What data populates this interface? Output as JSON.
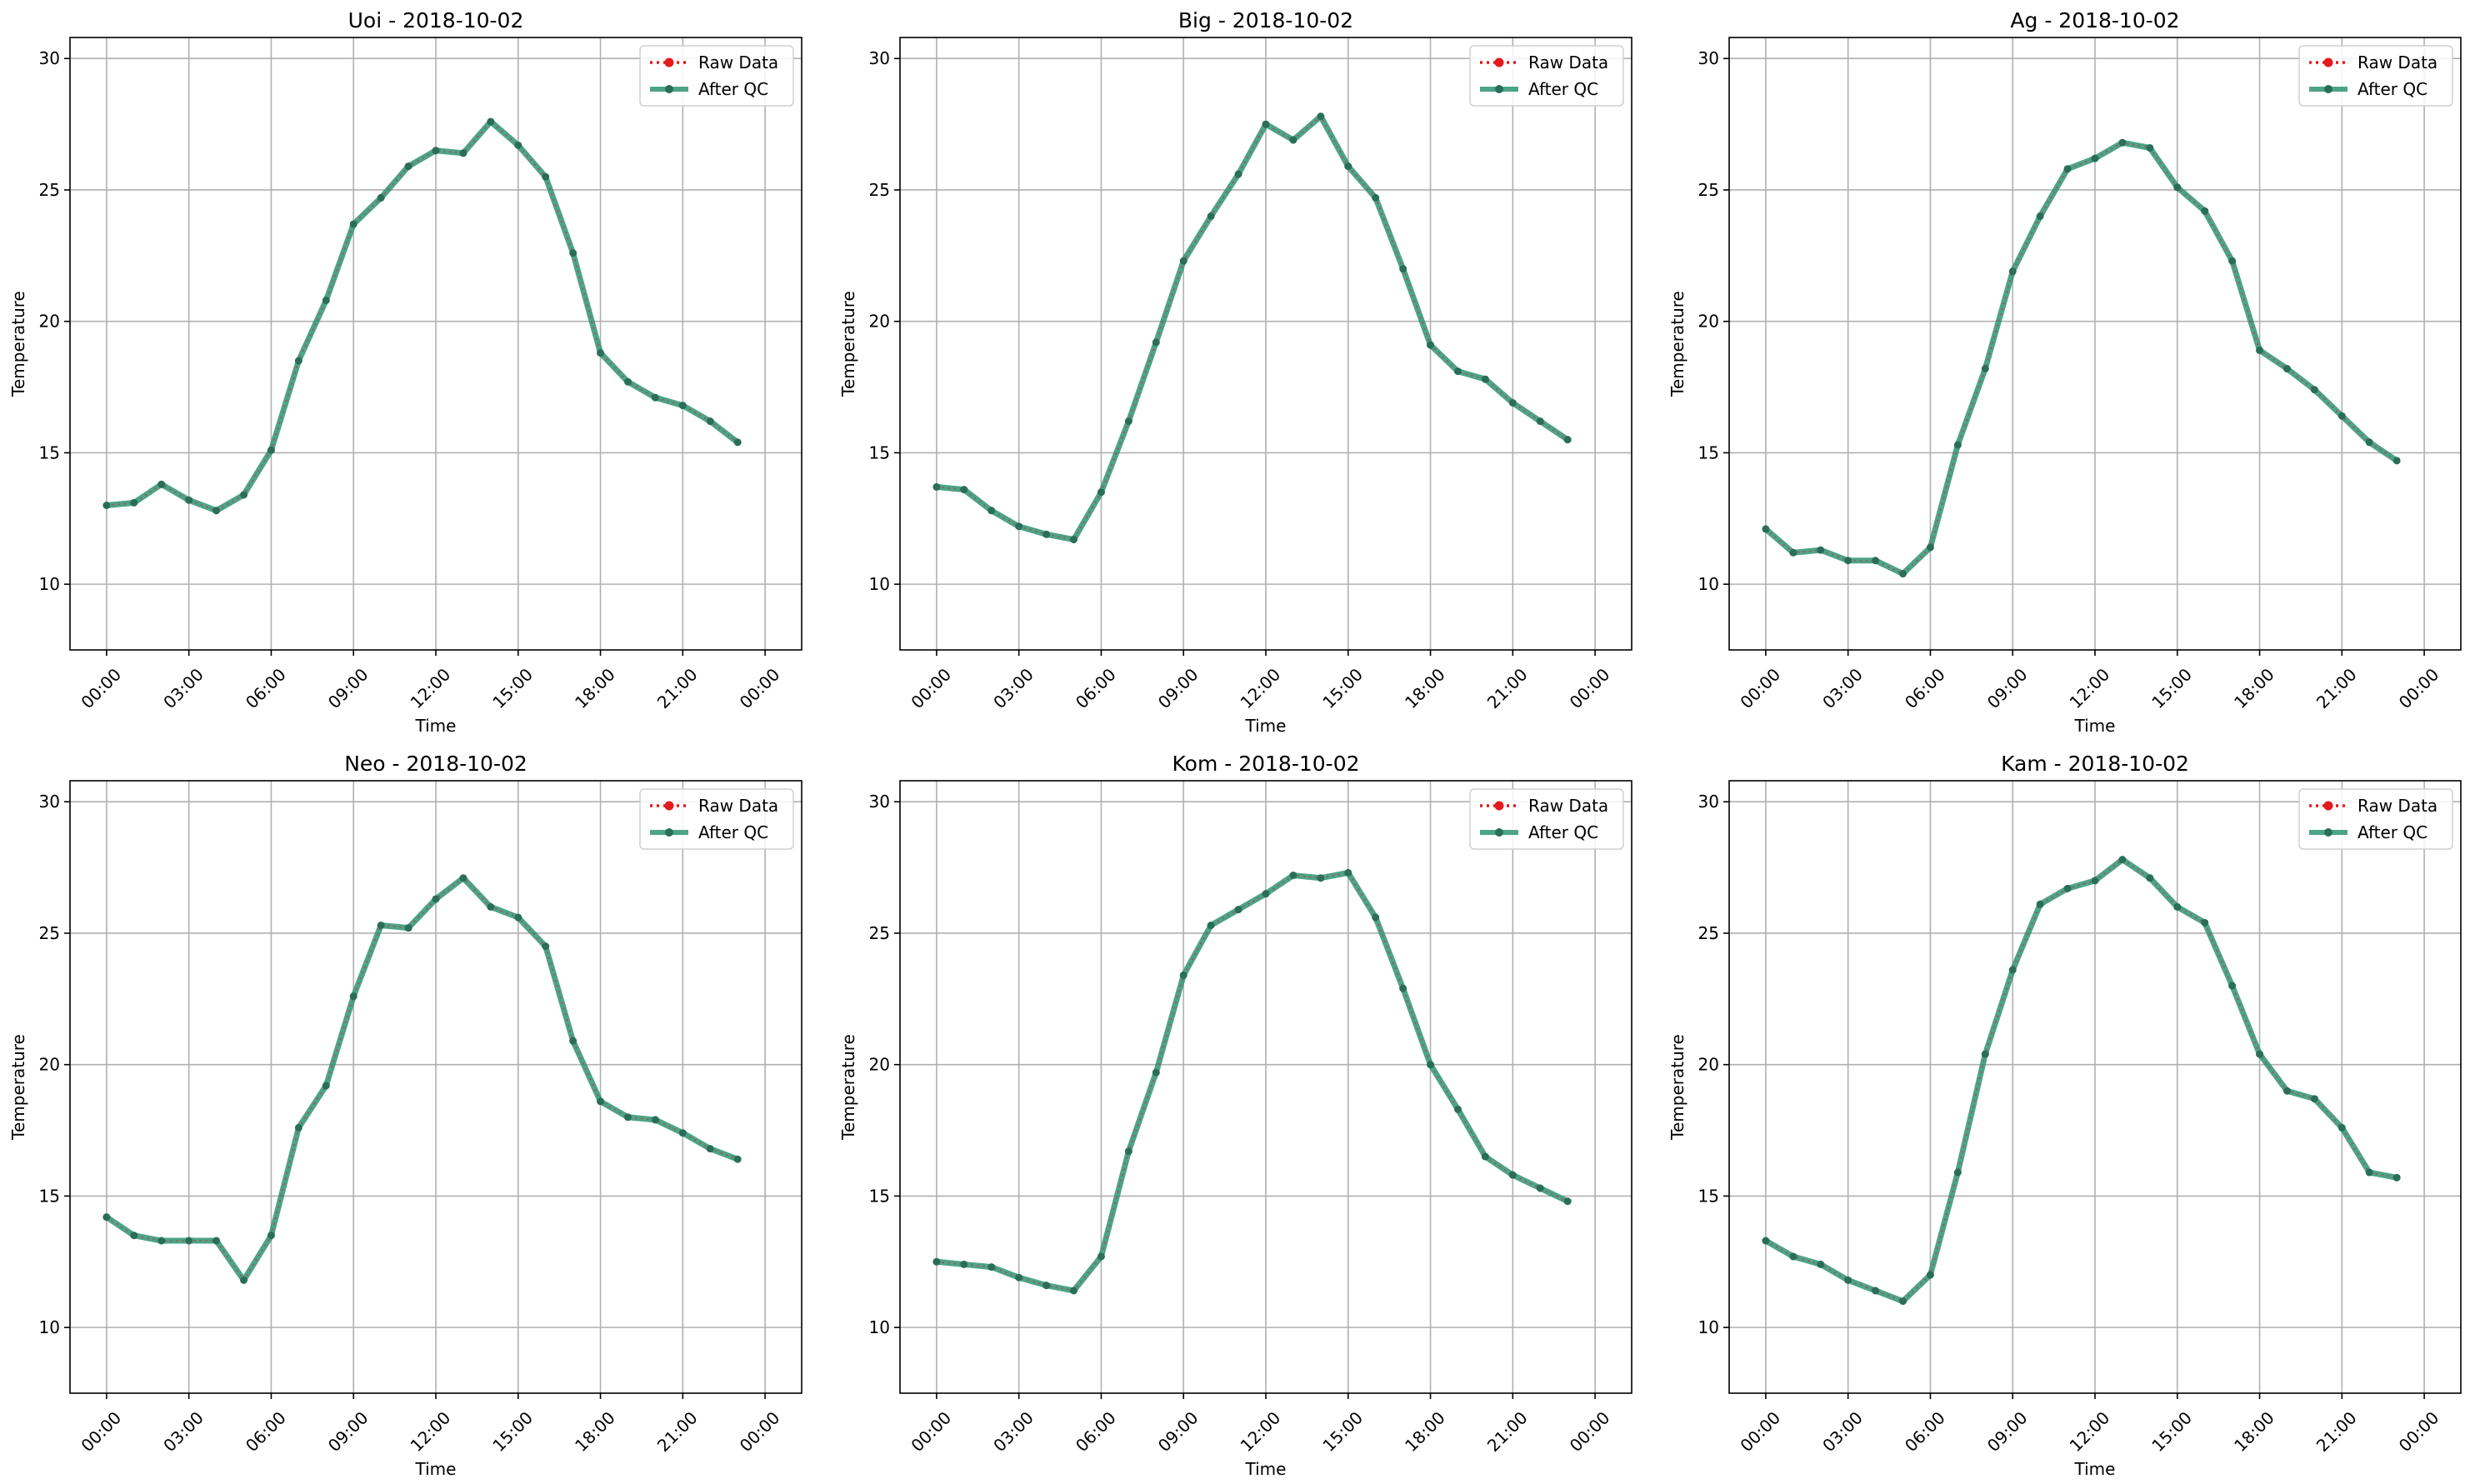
{
  "chart_data": [
    {
      "type": "line",
      "title": "Uoi - 2018-10-02",
      "xlabel": "Time",
      "ylabel": "Temperature",
      "ylim": [
        7.5,
        30.8
      ],
      "yticks": [
        10,
        15,
        20,
        25,
        30
      ],
      "xticks": [
        "00:00",
        "03:00",
        "06:00",
        "09:00",
        "12:00",
        "15:00",
        "18:00",
        "21:00",
        "00:00"
      ],
      "grid": true,
      "legend_position": "top-right",
      "x": [
        "00:00",
        "01:00",
        "02:00",
        "03:00",
        "04:00",
        "05:00",
        "06:00",
        "07:00",
        "08:00",
        "09:00",
        "10:00",
        "11:00",
        "12:00",
        "13:00",
        "14:00",
        "15:00",
        "16:00",
        "17:00",
        "18:00",
        "19:00",
        "20:00",
        "21:00",
        "22:00",
        "23:00"
      ],
      "series": [
        {
          "name": "Raw Data",
          "values": [
            13.0,
            13.1,
            13.8,
            13.2,
            12.8,
            13.4,
            15.1,
            18.5,
            20.8,
            23.7,
            24.7,
            25.9,
            26.5,
            26.4,
            27.6,
            26.7,
            25.5,
            22.6,
            18.8,
            17.7,
            17.1,
            16.8,
            16.2,
            15.4
          ]
        },
        {
          "name": "After QC",
          "values": [
            13.0,
            13.1,
            13.8,
            13.2,
            12.8,
            13.4,
            15.1,
            18.5,
            20.8,
            23.7,
            24.7,
            25.9,
            26.5,
            26.4,
            27.6,
            26.7,
            25.5,
            22.6,
            18.8,
            17.7,
            17.1,
            16.8,
            16.2,
            15.4
          ]
        }
      ]
    },
    {
      "type": "line",
      "title": "Big - 2018-10-02",
      "xlabel": "Time",
      "ylabel": "Temperature",
      "ylim": [
        7.5,
        30.8
      ],
      "yticks": [
        10,
        15,
        20,
        25,
        30
      ],
      "xticks": [
        "00:00",
        "03:00",
        "06:00",
        "09:00",
        "12:00",
        "15:00",
        "18:00",
        "21:00",
        "00:00"
      ],
      "grid": true,
      "legend_position": "top-right",
      "x": [
        "00:00",
        "01:00",
        "02:00",
        "03:00",
        "04:00",
        "05:00",
        "06:00",
        "07:00",
        "08:00",
        "09:00",
        "10:00",
        "11:00",
        "12:00",
        "13:00",
        "14:00",
        "15:00",
        "16:00",
        "17:00",
        "18:00",
        "19:00",
        "20:00",
        "21:00",
        "22:00",
        "23:00"
      ],
      "series": [
        {
          "name": "Raw Data",
          "values": [
            13.7,
            13.6,
            12.8,
            12.2,
            11.9,
            11.7,
            13.5,
            16.2,
            19.2,
            22.3,
            24.0,
            25.6,
            27.5,
            26.9,
            27.8,
            25.9,
            24.7,
            22.0,
            19.1,
            18.1,
            17.8,
            16.9,
            16.2,
            15.5
          ]
        },
        {
          "name": "After QC",
          "values": [
            13.7,
            13.6,
            12.8,
            12.2,
            11.9,
            11.7,
            13.5,
            16.2,
            19.2,
            22.3,
            24.0,
            25.6,
            27.5,
            26.9,
            27.8,
            25.9,
            24.7,
            22.0,
            19.1,
            18.1,
            17.8,
            16.9,
            16.2,
            15.5
          ]
        }
      ]
    },
    {
      "type": "line",
      "title": "Ag - 2018-10-02",
      "xlabel": "Time",
      "ylabel": "Temperature",
      "ylim": [
        7.5,
        30.8
      ],
      "yticks": [
        10,
        15,
        20,
        25,
        30
      ],
      "xticks": [
        "00:00",
        "03:00",
        "06:00",
        "09:00",
        "12:00",
        "15:00",
        "18:00",
        "21:00",
        "00:00"
      ],
      "grid": true,
      "legend_position": "top-right",
      "x": [
        "00:00",
        "01:00",
        "02:00",
        "03:00",
        "04:00",
        "05:00",
        "06:00",
        "07:00",
        "08:00",
        "09:00",
        "10:00",
        "11:00",
        "12:00",
        "13:00",
        "14:00",
        "15:00",
        "16:00",
        "17:00",
        "18:00",
        "19:00",
        "20:00",
        "21:00",
        "22:00",
        "23:00"
      ],
      "series": [
        {
          "name": "Raw Data",
          "values": [
            12.1,
            11.2,
            11.3,
            10.9,
            10.9,
            10.4,
            11.4,
            15.3,
            18.2,
            21.9,
            24.0,
            25.8,
            26.2,
            26.8,
            26.6,
            25.1,
            24.2,
            22.3,
            18.9,
            18.2,
            17.4,
            16.4,
            15.4,
            14.7
          ]
        },
        {
          "name": "After QC",
          "values": [
            12.1,
            11.2,
            11.3,
            10.9,
            10.9,
            10.4,
            11.4,
            15.3,
            18.2,
            21.9,
            24.0,
            25.8,
            26.2,
            26.8,
            26.6,
            25.1,
            24.2,
            22.3,
            18.9,
            18.2,
            17.4,
            16.4,
            15.4,
            14.7
          ]
        }
      ]
    },
    {
      "type": "line",
      "title": "Neo - 2018-10-02",
      "xlabel": "Time",
      "ylabel": "Temperature",
      "ylim": [
        7.5,
        30.8
      ],
      "yticks": [
        10,
        15,
        20,
        25,
        30
      ],
      "xticks": [
        "00:00",
        "03:00",
        "06:00",
        "09:00",
        "12:00",
        "15:00",
        "18:00",
        "21:00",
        "00:00"
      ],
      "grid": true,
      "legend_position": "top-right",
      "x": [
        "00:00",
        "01:00",
        "02:00",
        "03:00",
        "04:00",
        "05:00",
        "06:00",
        "07:00",
        "08:00",
        "09:00",
        "10:00",
        "11:00",
        "12:00",
        "13:00",
        "14:00",
        "15:00",
        "16:00",
        "17:00",
        "18:00",
        "19:00",
        "20:00",
        "21:00",
        "22:00",
        "23:00"
      ],
      "series": [
        {
          "name": "Raw Data",
          "values": [
            14.2,
            13.5,
            13.3,
            13.3,
            13.3,
            11.8,
            13.5,
            17.6,
            19.2,
            22.6,
            25.3,
            25.2,
            26.3,
            27.1,
            26.0,
            25.6,
            24.5,
            20.9,
            18.6,
            18.0,
            17.9,
            17.4,
            16.8,
            16.4
          ]
        },
        {
          "name": "After QC",
          "values": [
            14.2,
            13.5,
            13.3,
            13.3,
            13.3,
            11.8,
            13.5,
            17.6,
            19.2,
            22.6,
            25.3,
            25.2,
            26.3,
            27.1,
            26.0,
            25.6,
            24.5,
            20.9,
            18.6,
            18.0,
            17.9,
            17.4,
            16.8,
            16.4
          ]
        }
      ]
    },
    {
      "type": "line",
      "title": "Kom - 2018-10-02",
      "xlabel": "Time",
      "ylabel": "Temperature",
      "ylim": [
        7.5,
        30.8
      ],
      "yticks": [
        10,
        15,
        20,
        25,
        30
      ],
      "xticks": [
        "00:00",
        "03:00",
        "06:00",
        "09:00",
        "12:00",
        "15:00",
        "18:00",
        "21:00",
        "00:00"
      ],
      "grid": true,
      "legend_position": "top-right",
      "x": [
        "00:00",
        "01:00",
        "02:00",
        "03:00",
        "04:00",
        "05:00",
        "06:00",
        "07:00",
        "08:00",
        "09:00",
        "10:00",
        "11:00",
        "12:00",
        "13:00",
        "14:00",
        "15:00",
        "16:00",
        "17:00",
        "18:00",
        "19:00",
        "20:00",
        "21:00",
        "22:00",
        "23:00"
      ],
      "series": [
        {
          "name": "Raw Data",
          "values": [
            12.5,
            12.4,
            12.3,
            11.9,
            11.6,
            11.4,
            12.7,
            16.7,
            19.7,
            23.4,
            25.3,
            25.9,
            26.5,
            27.2,
            27.1,
            27.3,
            25.6,
            22.9,
            20.0,
            18.3,
            16.5,
            15.8,
            15.3,
            14.8
          ]
        },
        {
          "name": "After QC",
          "values": [
            12.5,
            12.4,
            12.3,
            11.9,
            11.6,
            11.4,
            12.7,
            16.7,
            19.7,
            23.4,
            25.3,
            25.9,
            26.5,
            27.2,
            27.1,
            27.3,
            25.6,
            22.9,
            20.0,
            18.3,
            16.5,
            15.8,
            15.3,
            14.8
          ]
        }
      ]
    },
    {
      "type": "line",
      "title": "Kam - 2018-10-02",
      "xlabel": "Time",
      "ylabel": "Temperature",
      "ylim": [
        7.5,
        30.8
      ],
      "yticks": [
        10,
        15,
        20,
        25,
        30
      ],
      "xticks": [
        "00:00",
        "03:00",
        "06:00",
        "09:00",
        "12:00",
        "15:00",
        "18:00",
        "21:00",
        "00:00"
      ],
      "grid": true,
      "legend_position": "top-right",
      "x": [
        "00:00",
        "01:00",
        "02:00",
        "03:00",
        "04:00",
        "05:00",
        "06:00",
        "07:00",
        "08:00",
        "09:00",
        "10:00",
        "11:00",
        "12:00",
        "13:00",
        "14:00",
        "15:00",
        "16:00",
        "17:00",
        "18:00",
        "19:00",
        "20:00",
        "21:00",
        "22:00",
        "23:00"
      ],
      "series": [
        {
          "name": "Raw Data",
          "values": [
            13.3,
            12.7,
            12.4,
            11.8,
            11.4,
            11.0,
            12.0,
            15.9,
            20.4,
            23.6,
            26.1,
            26.7,
            27.0,
            27.8,
            27.1,
            26.0,
            25.4,
            23.0,
            20.4,
            19.0,
            18.7,
            17.6,
            15.9,
            15.7
          ]
        },
        {
          "name": "After QC",
          "values": [
            13.3,
            12.7,
            12.4,
            11.8,
            11.4,
            11.0,
            12.0,
            15.9,
            20.4,
            23.6,
            26.1,
            26.7,
            27.0,
            27.8,
            27.1,
            26.0,
            25.4,
            23.0,
            20.4,
            19.0,
            18.7,
            17.6,
            15.9,
            15.7
          ]
        }
      ]
    }
  ],
  "colors": {
    "raw": "#e41a1c",
    "qc": "#2e9473",
    "grid": "#b0b0b0",
    "axes": "#000000"
  }
}
